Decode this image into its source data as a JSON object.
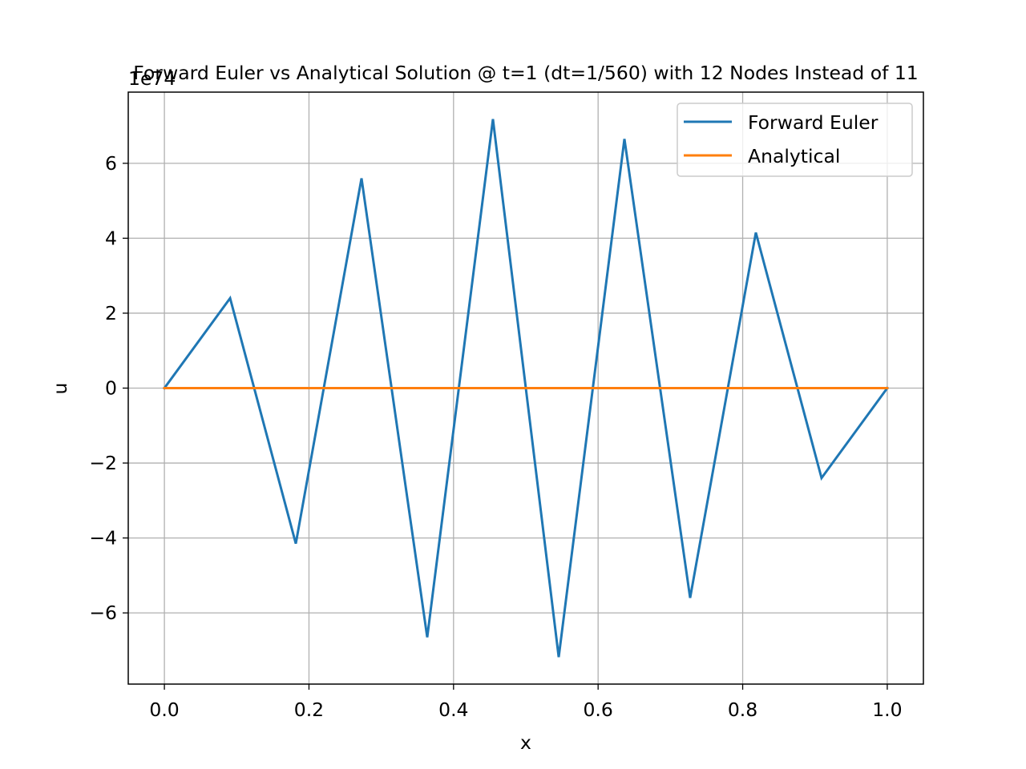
{
  "chart_data": {
    "type": "line",
    "title": "Forward Euler vs Analytical Solution @ t=1 (dt=1/560) with 12 Nodes Instead of 11",
    "xlabel": "x",
    "ylabel": "u",
    "y_offset_label": "1e74",
    "xlim": [
      -0.05,
      1.05
    ],
    "ylim": [
      -7.9,
      7.9
    ],
    "xticks": [
      0.0,
      0.2,
      0.4,
      0.6,
      0.8,
      1.0
    ],
    "xtick_labels": [
      "0.0",
      "0.2",
      "0.4",
      "0.6",
      "0.8",
      "1.0"
    ],
    "yticks": [
      -6,
      -4,
      -2,
      0,
      2,
      4,
      6
    ],
    "ytick_labels": [
      "−6",
      "−4",
      "−2",
      "0",
      "2",
      "4",
      "6"
    ],
    "grid": true,
    "legend_position": "top-right",
    "series": [
      {
        "name": "Forward Euler",
        "color": "#1f77b4",
        "x": [
          0.0,
          0.0909,
          0.1818,
          0.2727,
          0.3636,
          0.4545,
          0.5455,
          0.6364,
          0.7273,
          0.8182,
          0.9091,
          1.0
        ],
        "y": [
          0.0,
          2.4,
          -4.15,
          5.6,
          -6.65,
          7.18,
          -7.18,
          6.65,
          -5.6,
          4.15,
          -2.4,
          0.0
        ]
      },
      {
        "name": "Analytical",
        "color": "#ff7f0e",
        "x": [
          0.0,
          0.0909,
          0.1818,
          0.2727,
          0.3636,
          0.4545,
          0.5455,
          0.6364,
          0.7273,
          0.8182,
          0.9091,
          1.0
        ],
        "y": [
          0.0,
          0.0,
          0.0,
          0.0,
          0.0,
          0.0,
          0.0,
          0.0,
          0.0,
          0.0,
          0.0,
          0.0
        ]
      }
    ]
  }
}
